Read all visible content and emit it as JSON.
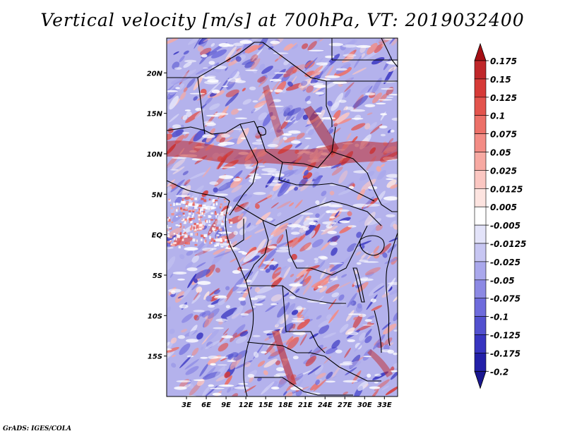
{
  "title": "Vertical velocity [m/s] at 700hPa, VT: 2019032400",
  "credit": "GrADS: IGES/COLA",
  "map": {
    "lat_labels": [
      "20N",
      "15N",
      "10N",
      "5N",
      "EQ",
      "5S",
      "10S",
      "15S"
    ],
    "lon_labels": [
      "3E",
      "6E",
      "9E",
      "12E",
      "15E",
      "18E",
      "21E",
      "24E",
      "27E",
      "30E",
      "33E"
    ]
  },
  "colorbar": {
    "levels": [
      "0.175",
      "0.15",
      "0.125",
      "0.1",
      "0.075",
      "0.05",
      "0.025",
      "0.0125",
      "0.005",
      "-0.005",
      "-0.0125",
      "-0.025",
      "-0.05",
      "-0.075",
      "-0.1",
      "-0.125",
      "-0.175",
      "-0.2"
    ],
    "colors": [
      "#a50f15",
      "#c0272a",
      "#d63a37",
      "#e3544d",
      "#ec7068",
      "#f38c85",
      "#f7a9a2",
      "#fbc7c2",
      "#fde4e0",
      "#ffffff",
      "#e3e3f9",
      "#c7c6f2",
      "#aaa8ec",
      "#8c89e4",
      "#6e6bdc",
      "#5250cf",
      "#3734c0",
      "#2320a8",
      "#1a1790"
    ]
  }
}
